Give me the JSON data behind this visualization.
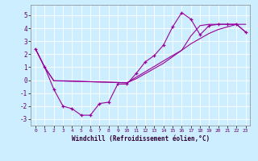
{
  "xlabel": "Windchill (Refroidissement éolien,°C)",
  "bg_color": "#cceeff",
  "line_color": "#990099",
  "xlim": [
    -0.5,
    23.5
  ],
  "ylim": [
    -3.5,
    5.8
  ],
  "xticks": [
    0,
    1,
    2,
    3,
    4,
    5,
    6,
    7,
    8,
    9,
    10,
    11,
    12,
    13,
    14,
    15,
    16,
    17,
    18,
    19,
    20,
    21,
    22,
    23
  ],
  "yticks": [
    -3,
    -2,
    -1,
    0,
    1,
    2,
    3,
    4,
    5
  ],
  "curve1_x": [
    0,
    1,
    2,
    3,
    4,
    5,
    6,
    7,
    8,
    9,
    10,
    11,
    12,
    13,
    14,
    15,
    16,
    17,
    18,
    19,
    20,
    21,
    22,
    23
  ],
  "curve1_y": [
    2.4,
    1.0,
    -0.7,
    -2.0,
    -2.2,
    -2.7,
    -2.7,
    -1.8,
    -1.7,
    -0.3,
    -0.3,
    0.5,
    1.4,
    1.9,
    2.7,
    4.1,
    5.2,
    4.7,
    3.5,
    4.2,
    4.3,
    4.3,
    4.3,
    3.7
  ],
  "curve2_x": [
    0,
    1,
    2,
    3,
    10,
    15,
    16,
    17,
    18,
    19,
    20,
    21,
    22,
    23
  ],
  "curve2_y": [
    2.4,
    1.0,
    -0.05,
    -0.05,
    -0.2,
    1.9,
    2.3,
    3.4,
    4.2,
    4.3,
    4.3,
    4.3,
    4.3,
    3.7
  ],
  "curve3_x": [
    0,
    1,
    2,
    10,
    11,
    12,
    13,
    14,
    15,
    16,
    17,
    18,
    19,
    20,
    21,
    22,
    23
  ],
  "curve3_y": [
    2.4,
    1.0,
    -0.05,
    -0.2,
    0.1,
    0.5,
    0.9,
    1.3,
    1.8,
    2.3,
    2.8,
    3.2,
    3.6,
    3.9,
    4.1,
    4.3,
    4.3
  ]
}
